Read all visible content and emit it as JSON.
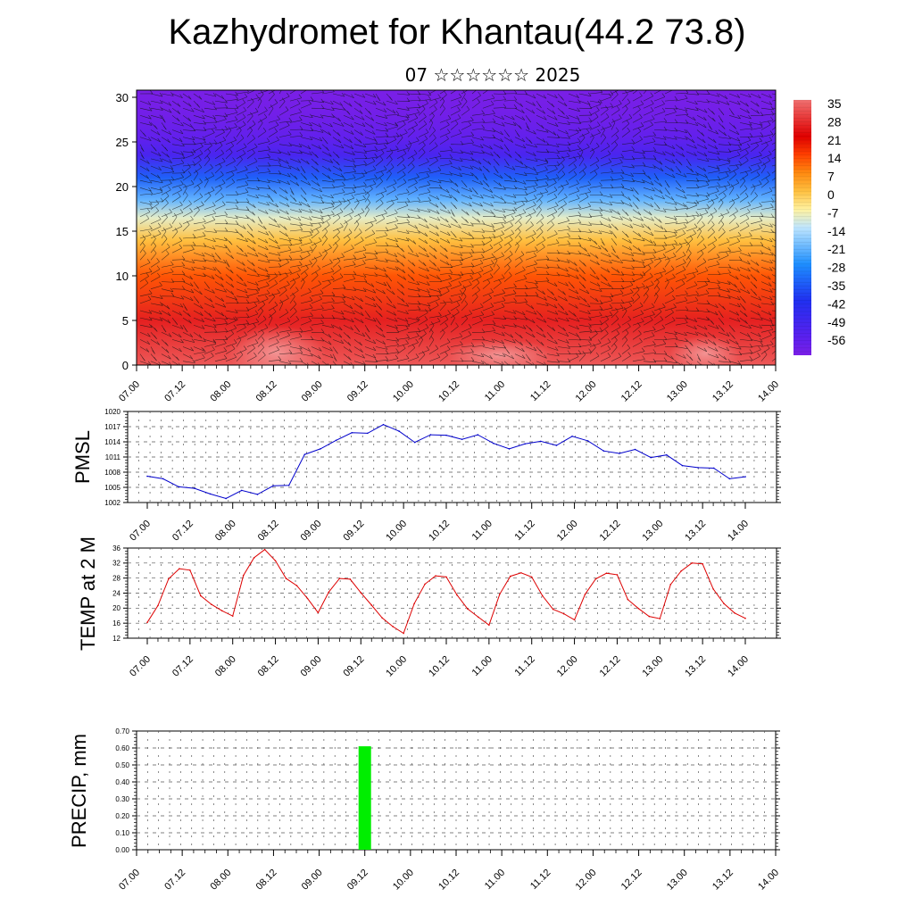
{
  "page": {
    "title": "Kazhydromet for Khantau(44.2 73.8)",
    "subtitle": "07 ☆☆☆☆☆☆ 2025"
  },
  "time_ticks": [
    "07.00",
    "07.12",
    "08.00",
    "08.12",
    "09.00",
    "09.12",
    "10.00",
    "10.12",
    "11.00",
    "11.12",
    "12.00",
    "12.12",
    "13.00",
    "13.12",
    "14.00"
  ],
  "chart_data": [
    {
      "type": "heatmap",
      "name": "cross-section",
      "x_ticks": [
        "07.00",
        "07.12",
        "08.00",
        "08.12",
        "09.00",
        "09.12",
        "10.00",
        "10.12",
        "11.00",
        "11.12",
        "12.00",
        "12.12",
        "13.00",
        "13.12",
        "14.00"
      ],
      "ylim": [
        0,
        30.8
      ],
      "y_ticks": [
        0,
        5,
        10,
        15,
        20,
        25,
        30
      ],
      "colorbar_labels": [
        35,
        28,
        21,
        14,
        7,
        0,
        -7,
        -14,
        -21,
        -28,
        -35,
        -42,
        -49,
        -56
      ],
      "colormap": [
        "#7a1fe6",
        "#2020ee",
        "#1e8fff",
        "#b0e0ff",
        "#fff2a0",
        "#ffc040",
        "#ff8010",
        "#ff3000",
        "#e00000",
        "#f07070"
      ],
      "temperature_profile": [
        {
          "height": 0,
          "value": 32
        },
        {
          "height": 5,
          "value": 25
        },
        {
          "height": 10,
          "value": 12
        },
        {
          "height": 14,
          "value": 0
        },
        {
          "height": 16.5,
          "value": -10
        },
        {
          "height": 18.5,
          "value": -22
        },
        {
          "height": 21,
          "value": -35
        },
        {
          "height": 23.5,
          "value": -52
        },
        {
          "height": 25.5,
          "value": -58
        },
        {
          "height": 28,
          "value": -62
        },
        {
          "height": 30.8,
          "value": -64
        }
      ]
    },
    {
      "type": "line",
      "ylabel": "PMSL",
      "ylim": [
        1002,
        1020
      ],
      "y_ticks": [
        1002,
        1005,
        1008,
        1011,
        1014,
        1017,
        1020
      ],
      "color": "#0000cc",
      "values": [
        1007.2,
        1006.7,
        1005.1,
        1004.8,
        1003.7,
        1002.8,
        1004.4,
        1003.6,
        1005.3,
        1005.4,
        1011.5,
        1012.6,
        1014.3,
        1015.8,
        1015.7,
        1017.4,
        1016.1,
        1013.9,
        1015.4,
        1015.3,
        1014.5,
        1015.4,
        1013.7,
        1012.6,
        1013.6,
        1014.1,
        1013.3,
        1015.1,
        1014.2,
        1012.2,
        1011.7,
        1012.5,
        1010.9,
        1011.4,
        1009.3,
        1008.9,
        1008.8,
        1006.7,
        1007.1
      ]
    },
    {
      "type": "line",
      "ylabel": "TEMP at 2 M",
      "ylim": [
        12,
        36
      ],
      "y_ticks": [
        12,
        16,
        20,
        24,
        28,
        32,
        36
      ],
      "color": "#dd0000",
      "values": [
        16.2,
        20.7,
        27.8,
        30.5,
        30.1,
        23.3,
        21.0,
        19.3,
        17.9,
        28.7,
        33.4,
        35.6,
        32.6,
        27.9,
        26.0,
        22.6,
        18.8,
        24.3,
        27.9,
        27.7,
        24.1,
        20.8,
        17.4,
        15.1,
        13.3,
        21.2,
        26.4,
        28.6,
        28.3,
        23.5,
        19.8,
        17.6,
        15.5,
        23.7,
        28.5,
        29.4,
        28.3,
        23.3,
        19.7,
        18.5,
        16.9,
        23.7,
        27.8,
        29.3,
        28.9,
        22.3,
        19.9,
        17.8,
        17.2,
        26.3,
        29.9,
        32.0,
        31.8,
        25.1,
        21.2,
        18.7,
        17.3
      ]
    },
    {
      "type": "bar",
      "ylabel": "PRECIP, mm",
      "ylim": [
        0,
        0.7
      ],
      "y_ticks": [
        "0.00",
        "0.10",
        "0.20",
        "0.30",
        "0.40",
        "0.50",
        "0.60",
        "0.70"
      ],
      "color": "#00ee00",
      "bars": [
        {
          "x": "09.12",
          "value": 0.61
        }
      ]
    }
  ]
}
